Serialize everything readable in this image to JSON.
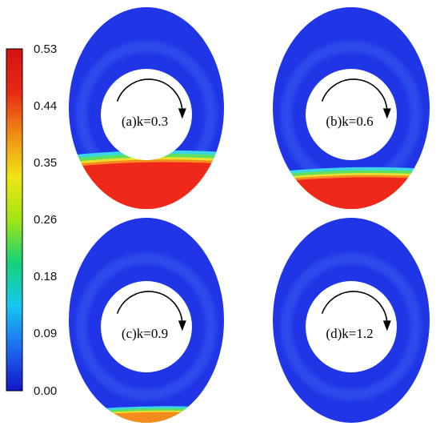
{
  "colorbar": {
    "colors": [
      "#1414c8",
      "#1e6af0",
      "#14c8f0",
      "#14d278",
      "#a0e614",
      "#f0e614",
      "#f08c14",
      "#e62814",
      "#d21414"
    ],
    "ticks": [
      "0.53",
      "0.44",
      "0.35",
      "0.26",
      "0.18",
      "0.09",
      "0.00"
    ]
  },
  "field_colors": {
    "base": "#1f35e6",
    "ring": "#3a5ef0",
    "cyan": "#38d6e8",
    "green": "#5ee060",
    "yellow": "#e8e02a",
    "orange": "#f58a1e",
    "red": "#f0281a"
  },
  "panels": [
    {
      "label": "(a)k=0.3",
      "deposit_level": 0.9
    },
    {
      "label": "(b)k=0.6",
      "deposit_level": 0.6
    },
    {
      "label": "(c)k=0.9",
      "deposit_level": 0.15
    },
    {
      "label": "(d)k=1.2",
      "deposit_level": 0.0
    }
  ],
  "rotation_arrow_icon": "clockwise-arrow-icon"
}
